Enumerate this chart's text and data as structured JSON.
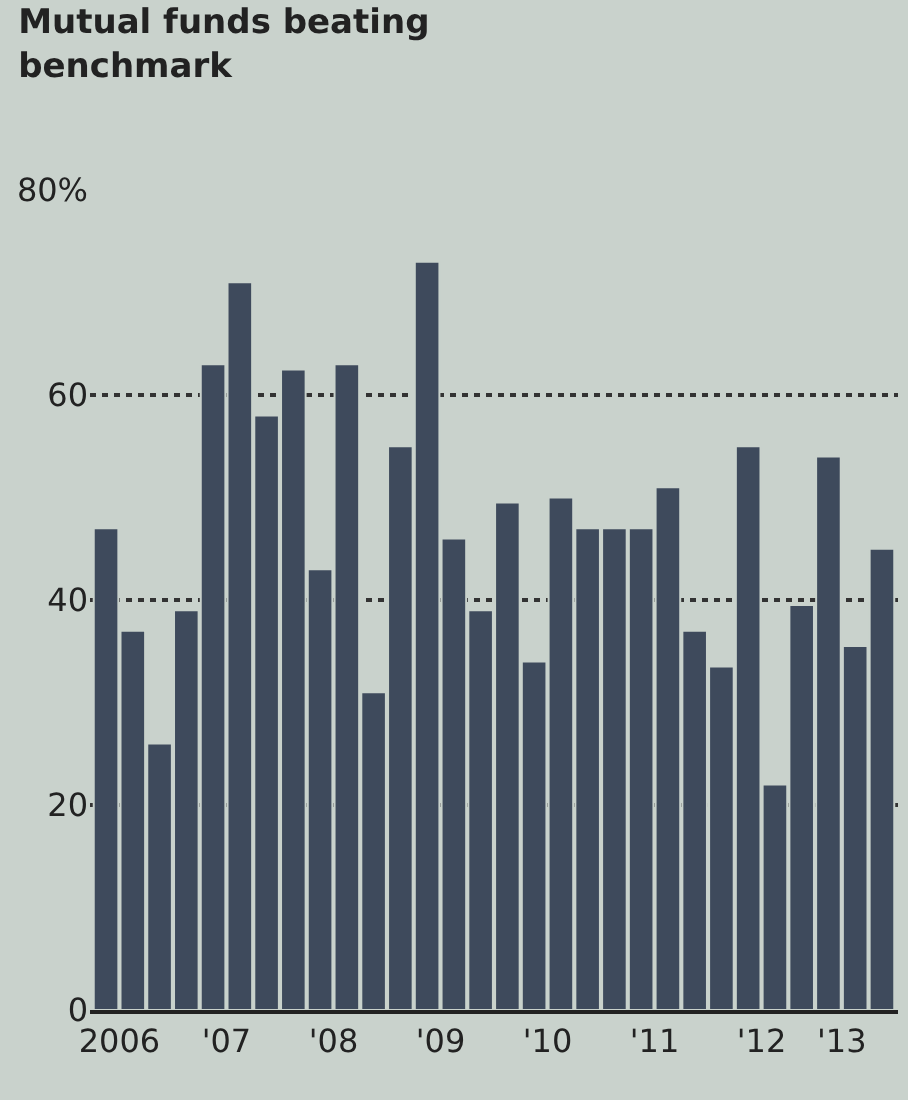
{
  "chart_data": {
    "type": "bar",
    "title": "Mutual funds beating\nbenchmark",
    "categories": [
      null,
      "2006",
      null,
      null,
      null,
      "'07",
      null,
      null,
      null,
      "'08",
      null,
      null,
      null,
      "'09",
      null,
      null,
      null,
      "'10",
      null,
      null,
      null,
      "'11",
      null,
      null,
      null,
      "'12",
      null,
      null,
      "'13",
      null
    ],
    "values": [
      47,
      37,
      26,
      39,
      63,
      71,
      58,
      62.5,
      43,
      63,
      31,
      55,
      73,
      46,
      39,
      49.5,
      34,
      50,
      47,
      47,
      47,
      51,
      37,
      33.5,
      55,
      22,
      39.5,
      54,
      35.5,
      45
    ],
    "color": "#3e4a5c",
    "ylim": [
      0,
      80
    ],
    "yticks": [
      0,
      20,
      40,
      60,
      {
        "value": 80,
        "label": "80%"
      }
    ],
    "grid": "y"
  }
}
